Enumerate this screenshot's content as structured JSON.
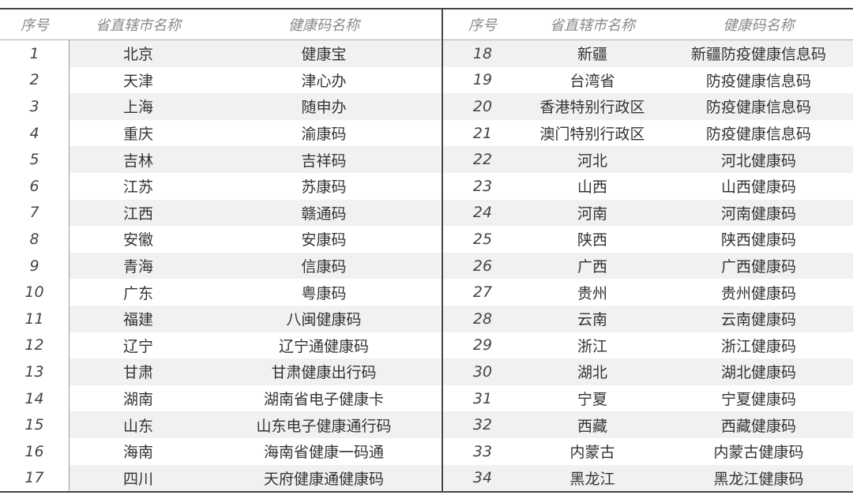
{
  "headers": {
    "index": "序号",
    "province": "省直辖市名称",
    "code": "健康码名称"
  },
  "left_rows": [
    {
      "index": "1",
      "province": "北京",
      "code": "健康宝"
    },
    {
      "index": "2",
      "province": "天津",
      "code": "津心办"
    },
    {
      "index": "3",
      "province": "上海",
      "code": "随申办"
    },
    {
      "index": "4",
      "province": "重庆",
      "code": "渝康码"
    },
    {
      "index": "5",
      "province": "吉林",
      "code": "吉祥码"
    },
    {
      "index": "6",
      "province": "江苏",
      "code": "苏康码"
    },
    {
      "index": "7",
      "province": "江西",
      "code": "赣通码"
    },
    {
      "index": "8",
      "province": "安徽",
      "code": "安康码"
    },
    {
      "index": "9",
      "province": "青海",
      "code": "信康码"
    },
    {
      "index": "10",
      "province": "广东",
      "code": "粤康码"
    },
    {
      "index": "11",
      "province": "福建",
      "code": "八闽健康码"
    },
    {
      "index": "12",
      "province": "辽宁",
      "code": "辽宁通健康码"
    },
    {
      "index": "13",
      "province": "甘肃",
      "code": "甘肃健康出行码"
    },
    {
      "index": "14",
      "province": "湖南",
      "code": "湖南省电子健康卡"
    },
    {
      "index": "15",
      "province": "山东",
      "code": "山东电子健康通行码"
    },
    {
      "index": "16",
      "province": "海南",
      "code": "海南省健康一码通"
    },
    {
      "index": "17",
      "province": "四川",
      "code": "天府健康通健康码"
    }
  ],
  "right_rows": [
    {
      "index": "18",
      "province": "新疆",
      "code": "新疆防疫健康信息码"
    },
    {
      "index": "19",
      "province": "台湾省",
      "code": "防疫健康信息码"
    },
    {
      "index": "20",
      "province": "香港特别行政区",
      "code": "防疫健康信息码"
    },
    {
      "index": "21",
      "province": "澳门特别行政区",
      "code": "防疫健康信息码"
    },
    {
      "index": "22",
      "province": "河北",
      "code": "河北健康码"
    },
    {
      "index": "23",
      "province": "山西",
      "code": "山西健康码"
    },
    {
      "index": "24",
      "province": "河南",
      "code": "河南健康码"
    },
    {
      "index": "25",
      "province": "陕西",
      "code": "陕西健康码"
    },
    {
      "index": "26",
      "province": "广西",
      "code": "广西健康码"
    },
    {
      "index": "27",
      "province": "贵州",
      "code": "贵州健康码"
    },
    {
      "index": "28",
      "province": "云南",
      "code": "云南健康码"
    },
    {
      "index": "29",
      "province": "浙江",
      "code": "浙江健康码"
    },
    {
      "index": "30",
      "province": "湖北",
      "code": "湖北健康码"
    },
    {
      "index": "31",
      "province": "宁夏",
      "code": "宁夏健康码"
    },
    {
      "index": "32",
      "province": "西藏",
      "code": "西藏健康码"
    },
    {
      "index": "33",
      "province": "内蒙古",
      "code": "内蒙古健康码"
    },
    {
      "index": "34",
      "province": "黑龙江",
      "code": "黑龙江健康码"
    }
  ]
}
